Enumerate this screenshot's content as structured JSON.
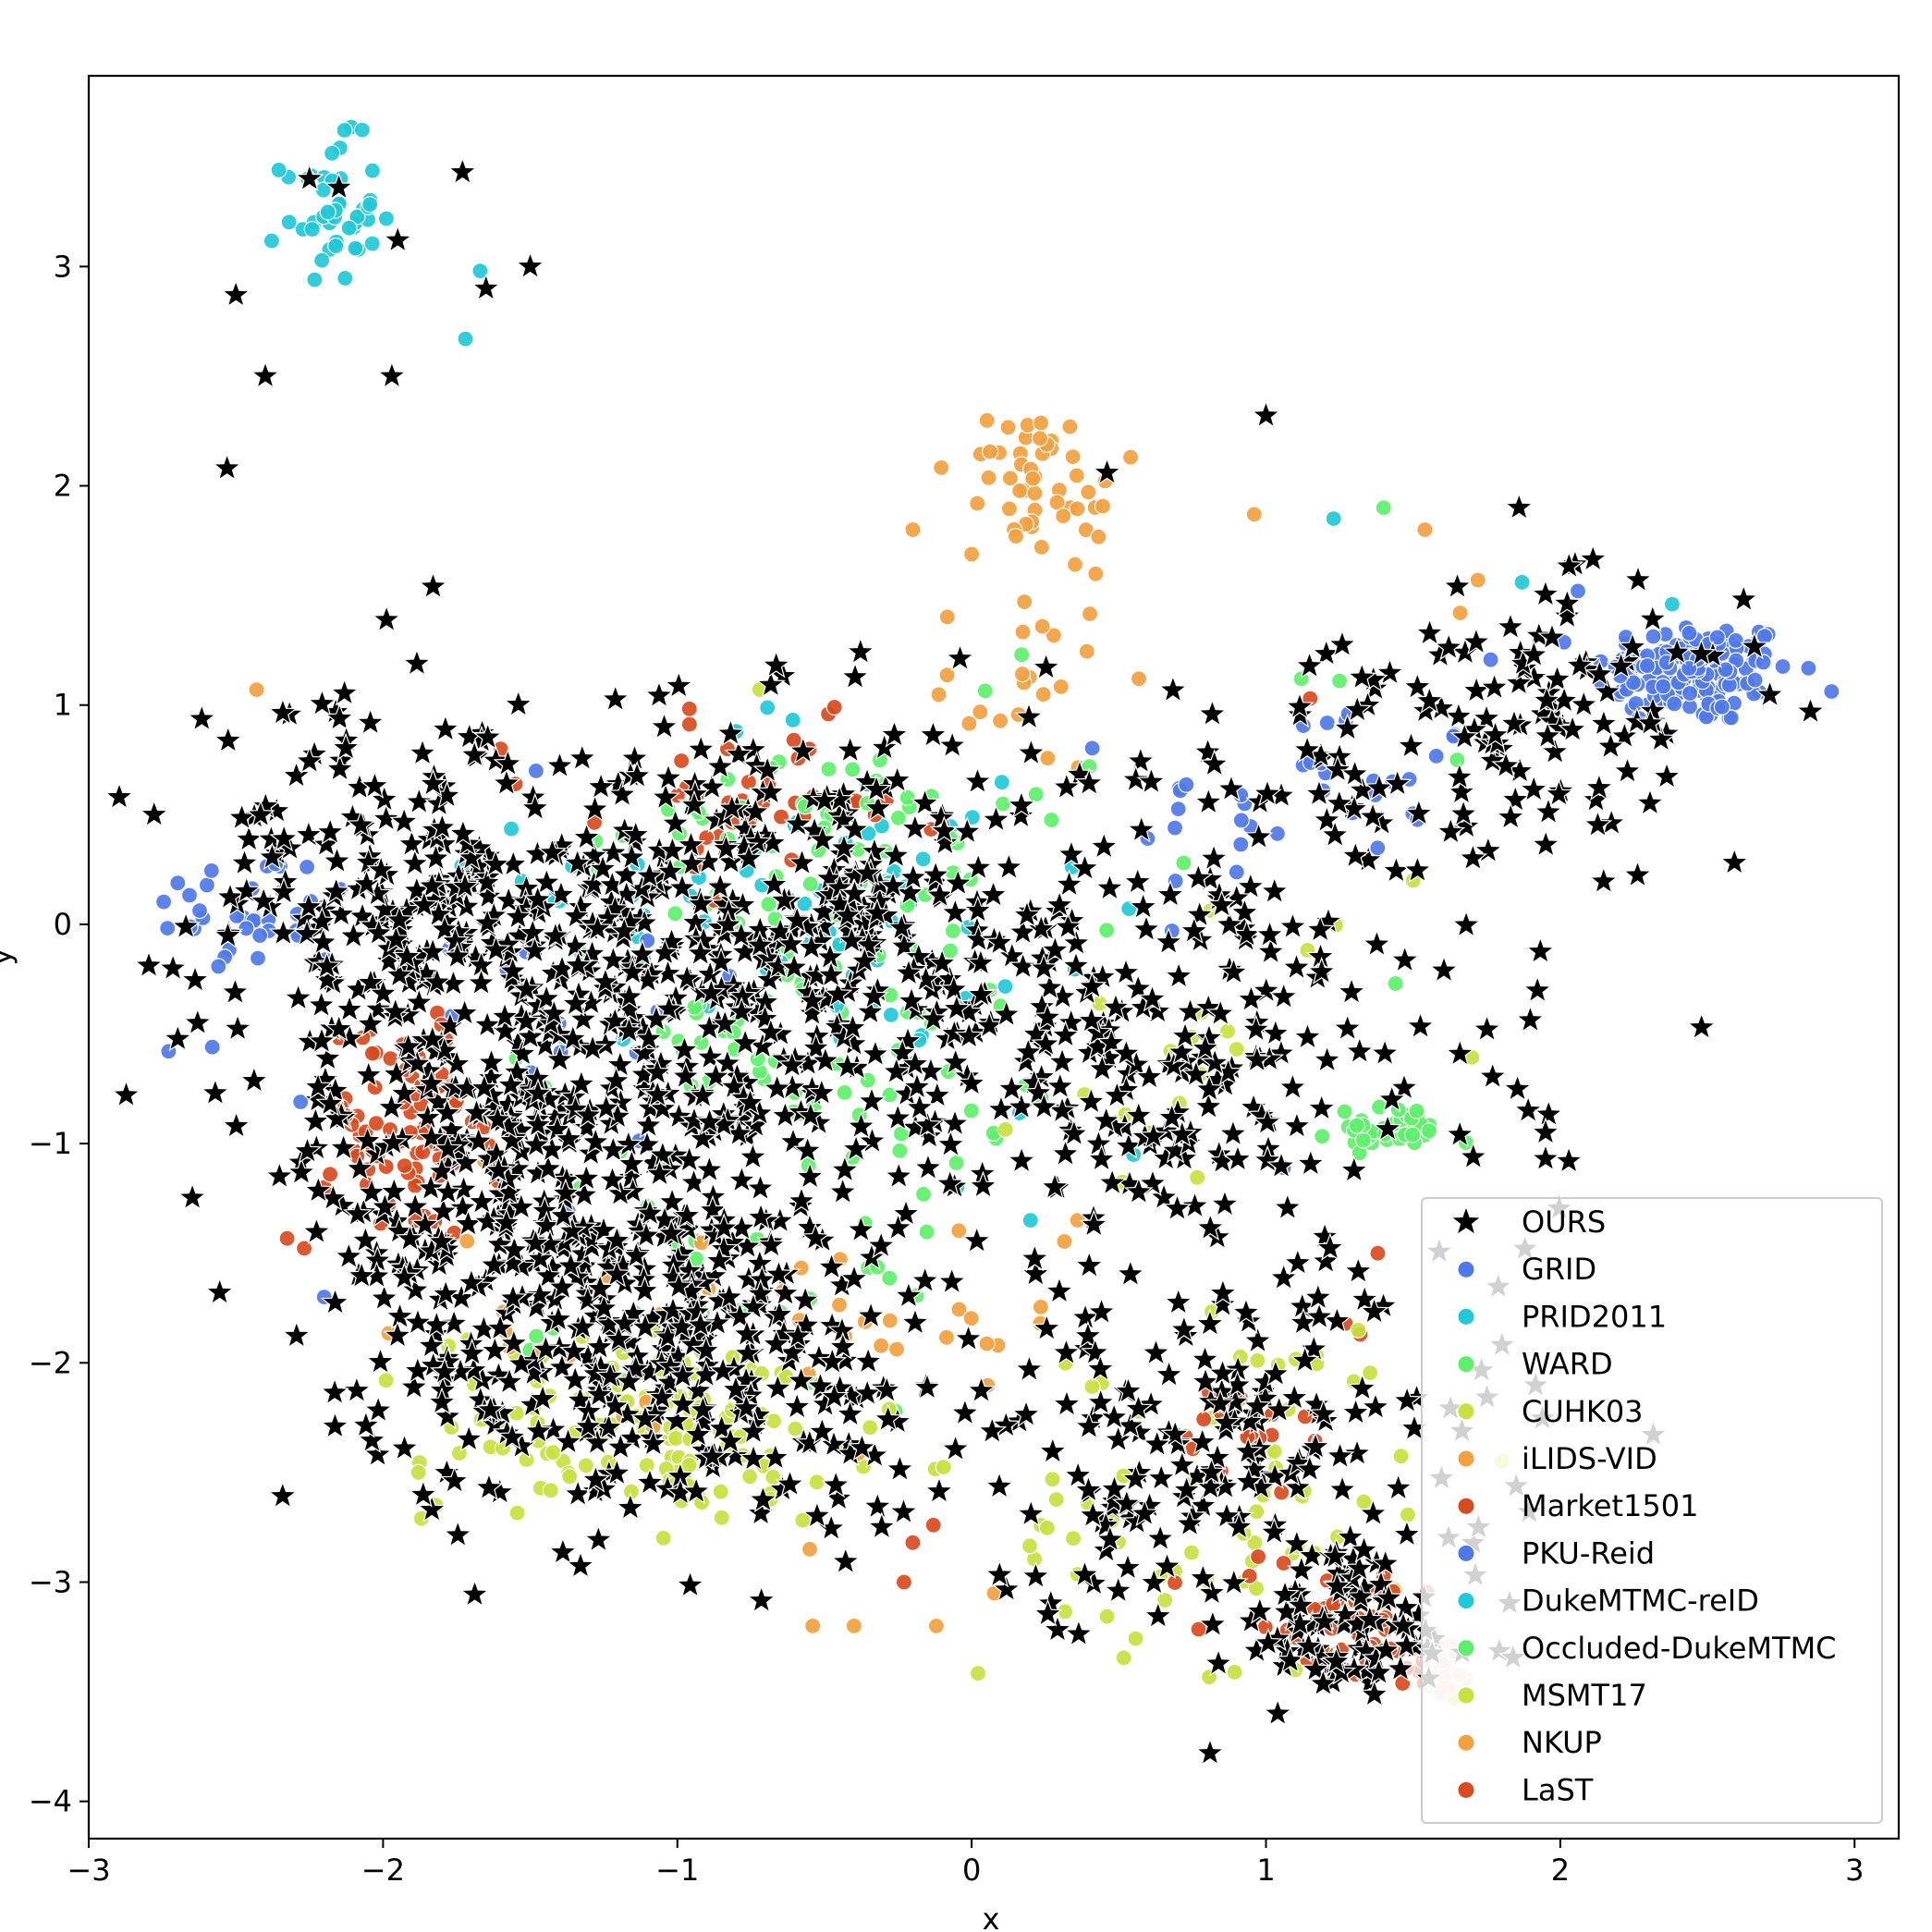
{
  "chart_data": {
    "type": "scatter",
    "title": "",
    "xlabel": "x",
    "ylabel": "y",
    "xlim": [
      -3.0,
      3.15
    ],
    "ylim": [
      -4.17,
      3.87
    ],
    "xticks": [
      -3,
      -2,
      -1,
      0,
      1,
      2,
      3
    ],
    "yticks": [
      -4,
      -3,
      -2,
      -1,
      0,
      1,
      2,
      3
    ],
    "xtick_labels": [
      "−3",
      "−2",
      "−1",
      "0",
      "1",
      "2",
      "3"
    ],
    "ytick_labels": [
      "−4",
      "−3",
      "−2",
      "−1",
      "0",
      "1",
      "2",
      "3"
    ],
    "grid": false,
    "legend_position": "lower-right",
    "series": [
      {
        "name": "OURS",
        "marker": "star",
        "color": "#000000",
        "clusters": [
          {
            "cx": -0.8,
            "cy": 0.05,
            "sx": 0.7,
            "sy": 0.45,
            "n": 520
          },
          {
            "cx": -1.3,
            "cy": -1.1,
            "sx": 0.45,
            "sy": 0.6,
            "n": 360
          },
          {
            "cx": -1.0,
            "cy": -2.0,
            "sx": 0.5,
            "sy": 0.35,
            "n": 260
          },
          {
            "cx": 0.6,
            "cy": -0.7,
            "sx": 0.55,
            "sy": 0.45,
            "n": 230
          },
          {
            "cx": 0.8,
            "cy": -2.4,
            "sx": 0.5,
            "sy": 0.4,
            "n": 200
          },
          {
            "cx": 1.3,
            "cy": -3.2,
            "sx": 0.22,
            "sy": 0.2,
            "n": 90
          },
          {
            "cx": 2.0,
            "cy": 1.0,
            "sx": 0.3,
            "sy": 0.25,
            "n": 90
          },
          {
            "cx": 1.3,
            "cy": 0.5,
            "sx": 0.4,
            "sy": 0.4,
            "n": 70
          },
          {
            "cx": -2.1,
            "cy": 0.2,
            "sx": 0.3,
            "sy": 0.4,
            "n": 120
          },
          {
            "cx": -1.75,
            "cy": -1.0,
            "sx": 0.3,
            "sy": 0.6,
            "n": 130
          }
        ],
        "points": [
          [
            -2.25,
            3.4
          ],
          [
            -2.15,
            3.36
          ],
          [
            -1.73,
            3.43
          ],
          [
            -1.95,
            3.12
          ],
          [
            -1.5,
            3.0
          ],
          [
            -1.65,
            2.9
          ],
          [
            -2.5,
            2.87
          ],
          [
            -2.4,
            2.5
          ],
          [
            -1.97,
            2.5
          ],
          [
            -2.53,
            2.08
          ],
          [
            -1.83,
            1.54
          ],
          [
            1.0,
            2.32
          ],
          [
            1.86,
            1.9
          ],
          [
            0.46,
            2.06
          ],
          [
            2.85,
            0.97
          ],
          [
            2.48,
            -0.47
          ],
          [
            1.95,
            -0.95
          ],
          [
            1.95,
            -1.07
          ],
          [
            0.81,
            -3.78
          ],
          [
            1.04,
            -3.6
          ],
          [
            1.88,
            -1.48
          ],
          [
            -2.57,
            -0.77
          ],
          [
            -2.63,
            -0.45
          ]
        ]
      },
      {
        "name": "GRID",
        "color": "#4f78e8",
        "clusters": [
          {
            "cx": 2.45,
            "cy": 1.15,
            "sx": 0.17,
            "sy": 0.12,
            "n": 150
          },
          {
            "cx": -2.45,
            "cy": 0.05,
            "sx": 0.18,
            "sy": 0.15,
            "n": 35
          },
          {
            "cx": 1.15,
            "cy": 0.55,
            "sx": 0.3,
            "sy": 0.25,
            "n": 35
          }
        ],
        "points": [
          [
            -2.58,
            -0.56
          ],
          [
            -2.28,
            -0.81
          ],
          [
            -2.2,
            -1.7
          ],
          [
            2.06,
            1.52
          ],
          [
            1.43,
            0.65
          ]
        ]
      },
      {
        "name": "PRID2011",
        "color": "#22c8d8",
        "clusters": [
          {
            "cx": -2.18,
            "cy": 3.25,
            "sx": 0.08,
            "sy": 0.16,
            "n": 45
          },
          {
            "cx": -0.6,
            "cy": 0.25,
            "sx": 0.45,
            "sy": 0.4,
            "n": 35
          }
        ],
        "points": [
          [
            -1.72,
            2.67
          ],
          [
            -1.67,
            2.98
          ],
          [
            1.23,
            1.85
          ],
          [
            1.87,
            1.56
          ],
          [
            2.38,
            1.46
          ],
          [
            -0.8,
            0.88
          ]
        ]
      },
      {
        "name": "WARD",
        "color": "#5ef06a",
        "clusters": [
          {
            "cx": -0.6,
            "cy": -0.4,
            "sx": 0.45,
            "sy": 0.45,
            "n": 100
          },
          {
            "cx": 1.4,
            "cy": -0.95,
            "sx": 0.1,
            "sy": 0.04,
            "n": 25
          },
          {
            "cx": -0.8,
            "cy": -1.8,
            "sx": 0.3,
            "sy": 0.2,
            "n": 25
          }
        ],
        "points": [
          [
            1.4,
            1.9
          ],
          [
            0.17,
            1.23
          ],
          [
            1.65,
            0.75
          ],
          [
            1.44,
            -0.27
          ],
          [
            1.25,
            1.11
          ]
        ]
      },
      {
        "name": "CUHK03",
        "color": "#c8e040",
        "clusters": [
          {
            "cx": -1.05,
            "cy": -2.25,
            "sx": 0.4,
            "sy": 0.2,
            "n": 90
          },
          {
            "cx": 0.75,
            "cy": -2.85,
            "sx": 0.35,
            "sy": 0.3,
            "n": 55
          },
          {
            "cx": 0.8,
            "cy": -0.55,
            "sx": 0.3,
            "sy": 0.4,
            "n": 20
          }
        ],
        "points": [
          [
            -1.87,
            -2.71
          ],
          [
            -1.82,
            -2.65
          ],
          [
            -1.99,
            -2.08
          ],
          [
            -0.72,
            1.07
          ],
          [
            1.64,
            -3.53
          ]
        ]
      },
      {
        "name": "iLIDS-VID",
        "color": "#f2a040",
        "clusters": [
          {
            "cx": 0.22,
            "cy": 2.05,
            "sx": 0.08,
            "sy": 0.15,
            "n": 35
          },
          {
            "cx": 0.2,
            "cy": 1.1,
            "sx": 0.15,
            "sy": 0.2,
            "n": 20
          },
          {
            "cx": -0.4,
            "cy": -2.0,
            "sx": 0.35,
            "sy": 0.35,
            "n": 25
          }
        ],
        "points": [
          [
            -2.43,
            1.07
          ],
          [
            0.96,
            1.87
          ],
          [
            1.54,
            1.8
          ],
          [
            1.72,
            1.57
          ],
          [
            -0.54,
            -3.2
          ],
          [
            -0.4,
            -3.2
          ],
          [
            -0.12,
            -3.2
          ],
          [
            0.36,
            -1.35
          ],
          [
            1.66,
            1.42
          ]
        ]
      },
      {
        "name": "Market1501",
        "color": "#d84a20",
        "clusters": [
          {
            "cx": -1.95,
            "cy": -0.95,
            "sx": 0.18,
            "sy": 0.25,
            "n": 60
          },
          {
            "cx": -0.7,
            "cy": 0.55,
            "sx": 0.25,
            "sy": 0.18,
            "n": 35
          },
          {
            "cx": 0.9,
            "cy": -2.35,
            "sx": 0.12,
            "sy": 0.15,
            "n": 20
          },
          {
            "cx": 1.2,
            "cy": -3.15,
            "sx": 0.2,
            "sy": 0.15,
            "n": 35
          }
        ],
        "points": [
          [
            -2.2,
            -1.2
          ],
          [
            -2.18,
            -1.14
          ],
          [
            1.15,
            1.03
          ],
          [
            1.38,
            -1.5
          ],
          [
            1.27,
            -1.82
          ],
          [
            1.32,
            -1.87
          ],
          [
            -0.23,
            -3.0
          ],
          [
            -0.2,
            -2.82
          ]
        ]
      },
      {
        "name": "PKU-Reid",
        "color": "#4f78e8",
        "clusters": [
          {
            "cx": -1.5,
            "cy": -0.2,
            "sx": 0.4,
            "sy": 0.3,
            "n": 15
          }
        ],
        "points": [
          [
            1.28,
            0.96
          ],
          [
            1.06,
            -1.11
          ],
          [
            -1.37,
            -1.31
          ],
          [
            -1.48,
            0.7
          ]
        ]
      },
      {
        "name": "DukeMTMC-reID",
        "color": "#22c8d8",
        "clusters": [
          {
            "cx": -0.35,
            "cy": -0.15,
            "sx": 0.4,
            "sy": 0.35,
            "n": 30
          }
        ],
        "points": [
          [
            0.2,
            -1.35
          ],
          [
            -0.05,
            -1.2
          ],
          [
            0.55,
            -1.05
          ]
        ]
      },
      {
        "name": "Occluded-DukeMTMC",
        "color": "#5ef06a",
        "clusters": [
          {
            "cx": -0.45,
            "cy": 0.55,
            "sx": 0.3,
            "sy": 0.15,
            "n": 30
          },
          {
            "cx": 1.45,
            "cy": -0.92,
            "sx": 0.08,
            "sy": 0.05,
            "n": 15
          }
        ],
        "points": [
          [
            1.12,
            1.12
          ],
          [
            0.72,
            0.28
          ],
          [
            0.4,
            0.72
          ]
        ]
      },
      {
        "name": "MSMT17",
        "color": "#c8e040",
        "clusters": [
          {
            "cx": -0.9,
            "cy": -2.45,
            "sx": 0.35,
            "sy": 0.15,
            "n": 35
          },
          {
            "cx": 1.1,
            "cy": -2.05,
            "sx": 0.25,
            "sy": 0.2,
            "n": 15
          }
        ],
        "points": [
          [
            -1.88,
            -2.5
          ],
          [
            1.1,
            -3.4
          ],
          [
            1.5,
            0.2
          ]
        ]
      },
      {
        "name": "NKUP",
        "color": "#f2a040",
        "clusters": [
          {
            "cx": 0.25,
            "cy": 1.8,
            "sx": 0.15,
            "sy": 0.25,
            "n": 15
          },
          {
            "cx": -1.3,
            "cy": -1.7,
            "sx": 0.3,
            "sy": 0.3,
            "n": 15
          }
        ],
        "points": [
          [
            0.54,
            2.13
          ],
          [
            0.15,
            1.77
          ],
          [
            -0.2,
            1.8
          ],
          [
            -0.55,
            -2.85
          ]
        ]
      },
      {
        "name": "LaST",
        "color": "#d84a20",
        "clusters": [
          {
            "cx": -1.85,
            "cy": -0.8,
            "sx": 0.15,
            "sy": 0.25,
            "n": 15
          },
          {
            "cx": 1.3,
            "cy": -3.3,
            "sx": 0.15,
            "sy": 0.1,
            "n": 15
          }
        ],
        "points": [
          [
            -1.6,
            0.8
          ],
          [
            -1.55,
            0.64
          ],
          [
            -0.83,
            0.8
          ],
          [
            -0.13,
            -2.74
          ]
        ]
      },
      {
        "name": "",
        "color": "#f4c8bc",
        "legend": false,
        "clusters": [
          {
            "cx": 1.6,
            "cy": -3.38,
            "sx": 0.05,
            "sy": 0.07,
            "n": 35
          }
        ],
        "points": []
      }
    ]
  }
}
